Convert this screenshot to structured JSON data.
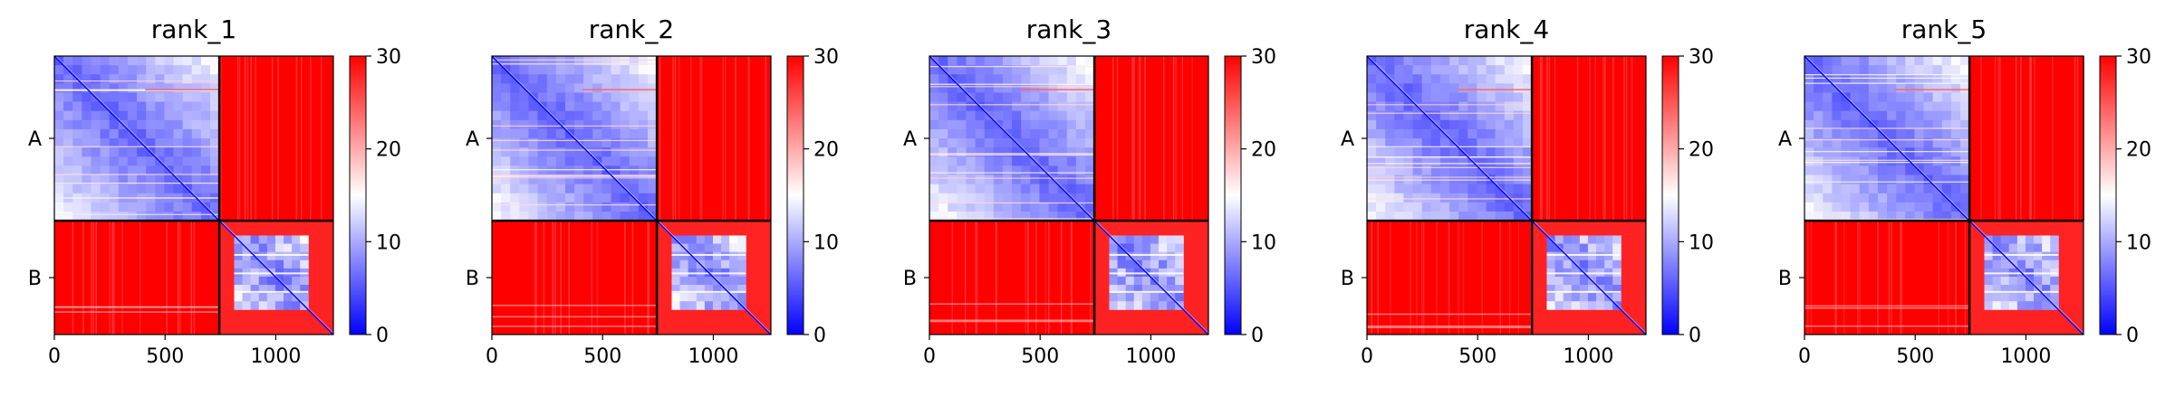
{
  "chart_data": {
    "type": "heatmap",
    "colormap": {
      "name": "bwr",
      "min": 0,
      "max": 30,
      "colors": [
        "#0000ff",
        "#ffffff",
        "#ff0000"
      ],
      "colorbar_ticks": [
        0,
        10,
        20,
        30
      ]
    },
    "chains": [
      {
        "label": "A",
        "start": 0,
        "end": 745
      },
      {
        "label": "B",
        "start": 745,
        "end": 1260
      }
    ],
    "xlim": [
      0,
      1260
    ],
    "ylim": [
      1260,
      0
    ],
    "x_ticks": [
      0,
      500,
      1000
    ],
    "y_tick_labels": [
      "A",
      "B"
    ],
    "block_values": {
      "A_A": 6,
      "A_B": 30,
      "B_A": 30,
      "B_B": 28,
      "B_B_inner": 8,
      "diagonal": 0
    },
    "panels": [
      {
        "title": "rank_1"
      },
      {
        "title": "rank_2"
      },
      {
        "title": "rank_3"
      },
      {
        "title": "rank_4"
      },
      {
        "title": "rank_5"
      }
    ]
  }
}
